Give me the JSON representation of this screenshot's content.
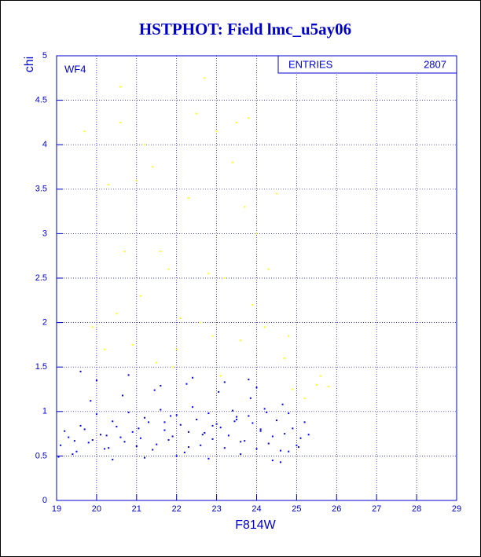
{
  "chart_data": {
    "type": "scatter",
    "title": "HSTPHOT: Field lmc_u5ay06",
    "x_label": "F814W",
    "y_label": "chi",
    "annotation": "WF4",
    "stats": {
      "label": "ENTRIES",
      "value": "2807"
    },
    "xlim": [
      19,
      29
    ],
    "ylim": [
      0,
      5
    ],
    "xticks": [
      19,
      20,
      21,
      22,
      23,
      24,
      25,
      26,
      27,
      28,
      29
    ],
    "yticks": [
      0,
      0.5,
      1,
      1.5,
      2,
      2.5,
      3,
      3.5,
      4,
      4.5,
      5
    ],
    "grid": true,
    "axis_color": "#0000cc",
    "series": [
      {
        "color": "#0000ff",
        "x": [
          19.1,
          19.3,
          19.5,
          19.7,
          19.9,
          20.1,
          20.3,
          20.5,
          20.7,
          20.9,
          21.1,
          21.3,
          21.5,
          21.7,
          21.9,
          22.1,
          22.3,
          22.5,
          22.7,
          22.9,
          23.1,
          23.3,
          23.5,
          23.7,
          23.9,
          24.1,
          24.3,
          24.5,
          24.7,
          24.9,
          25.1,
          19.2,
          19.4,
          19.6,
          19.8,
          20.0,
          20.2,
          20.4,
          20.6,
          20.8,
          21.0,
          21.2,
          21.4,
          21.6,
          21.8,
          22.0,
          22.2,
          22.4,
          22.6,
          22.8,
          23.0,
          23.2,
          23.4,
          23.6,
          23.8,
          24.0,
          24.2,
          24.4,
          24.6,
          24.8,
          25.0,
          25.2,
          19.05,
          19.45,
          19.85,
          20.25,
          20.65,
          21.05,
          21.45,
          21.85,
          22.25,
          22.65,
          23.05,
          23.45,
          23.85,
          24.25,
          24.65,
          25.05,
          19.6,
          20.0,
          20.4,
          20.8,
          21.2,
          21.6,
          22.0,
          22.4,
          22.8,
          23.2,
          23.6,
          24.0,
          24.4,
          24.8,
          21.7,
          22.3,
          22.9,
          23.5,
          24.1,
          24.6,
          25.3,
          23.8
        ],
        "values": [
          0.62,
          0.71,
          0.55,
          0.8,
          0.68,
          0.74,
          0.59,
          0.83,
          0.66,
          0.77,
          0.7,
          0.88,
          0.63,
          0.79,
          0.72,
          0.85,
          0.6,
          0.91,
          0.76,
          0.69,
          0.82,
          0.73,
          0.94,
          0.67,
          0.87,
          0.78,
          0.64,
          0.9,
          0.75,
          0.81,
          0.7,
          0.78,
          0.52,
          0.84,
          0.65,
          0.97,
          0.58,
          0.89,
          0.71,
          0.99,
          0.61,
          0.93,
          0.57,
          1.02,
          0.68,
          0.96,
          0.54,
          1.05,
          0.62,
          0.98,
          0.86,
          0.59,
          1.01,
          0.66,
          0.95,
          0.58,
          1.03,
          0.72,
          0.56,
          0.98,
          0.62,
          0.88,
          0.49,
          0.67,
          1.12,
          0.73,
          1.18,
          0.81,
          1.24,
          0.95,
          1.31,
          0.74,
          1.22,
          0.89,
          1.15,
          0.99,
          1.08,
          0.6,
          1.45,
          1.35,
          0.46,
          1.41,
          0.48,
          1.29,
          0.5,
          1.38,
          0.47,
          1.33,
          0.52,
          1.27,
          0.45,
          0.55,
          0.88,
          0.77,
          0.84,
          0.91,
          0.8,
          0.43,
          0.74,
          1.36
        ]
      },
      {
        "color": "#ffff00",
        "x": [
          19.9,
          19.7,
          20.3,
          20.6,
          20.6,
          20.7,
          20.5,
          20.9,
          21.0,
          21.2,
          21.4,
          21.6,
          21.8,
          21.9,
          22.1,
          22.3,
          22.5,
          22.7,
          22.8,
          22.9,
          23.0,
          23.2,
          23.4,
          23.5,
          23.7,
          23.8,
          23.9,
          24.0,
          24.2,
          24.5,
          24.7,
          24.9,
          25.2,
          25.5,
          25.8,
          20.2,
          21.1,
          22.0,
          23.1,
          24.3,
          21.5,
          25.6,
          22.6,
          23.6,
          24.8
        ],
        "values": [
          1.95,
          4.15,
          3.55,
          4.65,
          4.25,
          2.8,
          2.1,
          1.75,
          3.6,
          4.0,
          3.75,
          2.8,
          2.6,
          1.5,
          2.05,
          3.4,
          4.35,
          4.75,
          2.55,
          1.85,
          4.15,
          2.5,
          3.8,
          4.25,
          3.3,
          4.3,
          2.2,
          3.0,
          1.95,
          3.45,
          1.6,
          1.25,
          1.15,
          1.3,
          1.28,
          1.7,
          2.3,
          1.7,
          1.4,
          2.6,
          1.55,
          1.4,
          2.0,
          1.8,
          1.85
        ]
      }
    ]
  }
}
